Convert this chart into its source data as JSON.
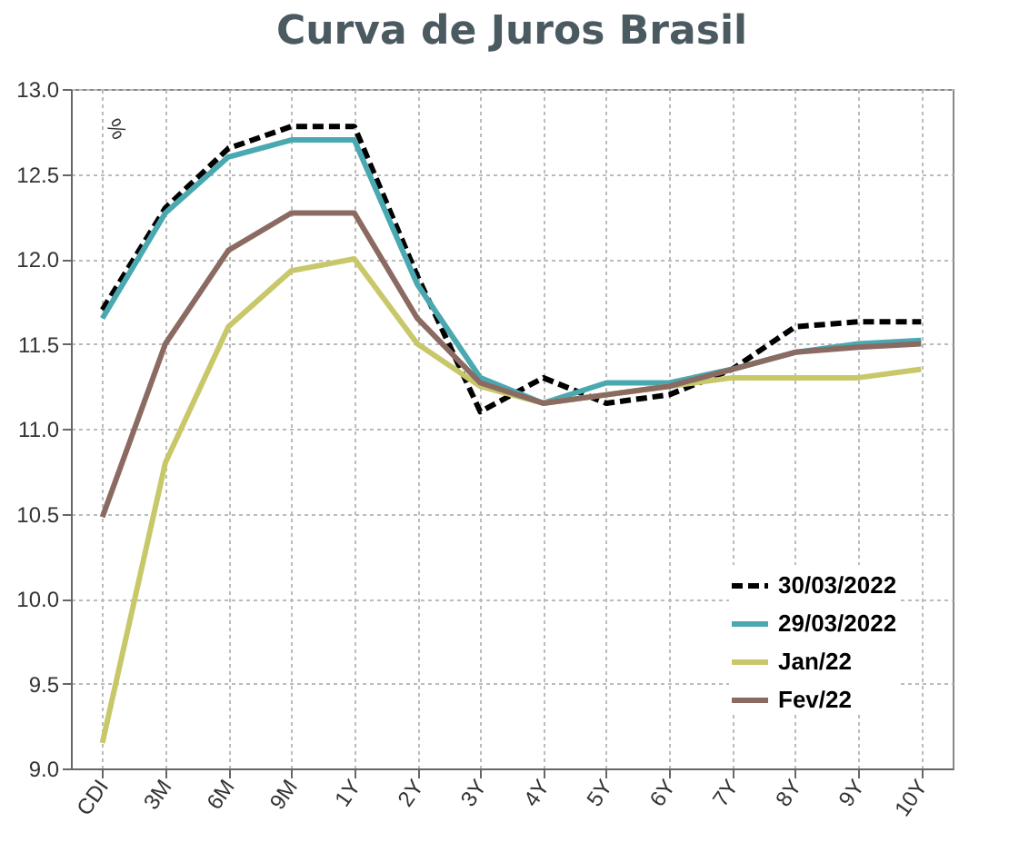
{
  "chart_data": {
    "type": "line",
    "title": "Curva de Juros Brasil",
    "annotations": [
      "%"
    ],
    "categories": [
      "CDI",
      "3M",
      "6M",
      "9M",
      "1Y",
      "2Y",
      "3Y",
      "4Y",
      "5Y",
      "6Y",
      "7Y",
      "8Y",
      "9Y",
      "10Y"
    ],
    "series": [
      {
        "name": "30/03/2022",
        "color": "#000000",
        "line_style": "dashed",
        "values": [
          11.7,
          12.3,
          12.65,
          12.78,
          12.78,
          11.9,
          11.1,
          11.3,
          11.15,
          11.2,
          11.35,
          11.6,
          11.63,
          11.63
        ]
      },
      {
        "name": "29/03/2022",
        "color": "#4aa8b0",
        "line_style": "solid",
        "values": [
          11.65,
          12.27,
          12.6,
          12.7,
          12.7,
          11.85,
          11.3,
          11.15,
          11.27,
          11.27,
          11.35,
          11.45,
          11.5,
          11.52
        ]
      },
      {
        "name": "Jan/22",
        "color": "#c8c86a",
        "line_style": "solid",
        "values": [
          9.15,
          10.8,
          11.6,
          11.93,
          12.0,
          11.5,
          11.25,
          11.15,
          11.2,
          11.25,
          11.3,
          11.3,
          11.3,
          11.35
        ]
      },
      {
        "name": "Fev/22",
        "color": "#8b6a62",
        "line_style": "solid",
        "values": [
          10.48,
          11.5,
          12.05,
          12.27,
          12.27,
          11.65,
          11.27,
          11.15,
          11.2,
          11.25,
          11.35,
          11.45,
          11.48,
          11.5
        ]
      }
    ],
    "ylim": [
      9,
      13
    ],
    "yticks": [
      {
        "value": 9,
        "label": "9.0"
      },
      9.5,
      {
        "value": 10,
        "label": "10.0"
      },
      10.5,
      {
        "value": 11,
        "label": "11.0"
      },
      11.5,
      {
        "value": 12,
        "label": "12.0"
      },
      12.5,
      {
        "value": 13,
        "label": "13.0"
      }
    ],
    "grid": true,
    "legend": "bottom right",
    "marker": "none"
  }
}
